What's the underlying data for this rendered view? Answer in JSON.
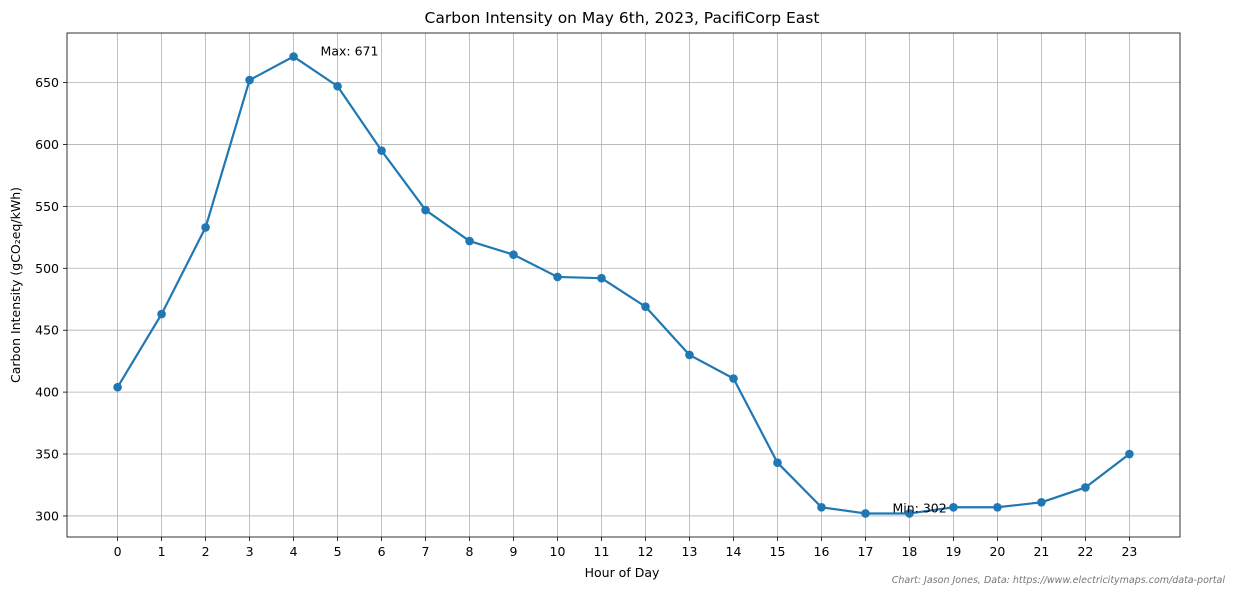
{
  "chart_data": {
    "type": "line",
    "title": "Carbon Intensity on May 6th, 2023, PacifiCorp East",
    "xlabel": "Hour of Day",
    "ylabel": "Carbon Intensity (gCO₂eq/kWh)",
    "x": [
      0,
      1,
      2,
      3,
      4,
      5,
      6,
      7,
      8,
      9,
      10,
      11,
      12,
      13,
      14,
      15,
      16,
      17,
      18,
      19,
      20,
      21,
      22,
      23
    ],
    "x_tick_labels": [
      "0",
      "1",
      "2",
      "3",
      "4",
      "5",
      "6",
      "7",
      "8",
      "9",
      "10",
      "11",
      "12",
      "13",
      "14",
      "15",
      "16",
      "17",
      "18",
      "19",
      "20",
      "21",
      "22",
      "23"
    ],
    "series": [
      {
        "values": [
          404,
          463,
          533,
          652,
          671,
          647,
          595,
          547,
          522,
          511,
          493,
          492,
          469,
          430,
          411,
          343,
          307,
          302,
          302,
          307,
          307,
          311,
          323,
          350
        ]
      }
    ],
    "xlim": [
      -1.15,
      24.15
    ],
    "ylim": [
      283,
      690
    ],
    "y_ticks": [
      300,
      350,
      400,
      450,
      500,
      550,
      600,
      650
    ],
    "y_tick_labels": [
      "300",
      "350",
      "400",
      "450",
      "500",
      "550",
      "600",
      "650"
    ],
    "grid": true,
    "line_color": "#1f77b4",
    "annotations": [
      {
        "text": "Max: 671",
        "x": 4,
        "y": 671
      },
      {
        "text": "Min: 302",
        "x": 17,
        "y": 302
      }
    ],
    "credit": "Chart: Jason Jones, Data: https://www.electricitymaps.com/data-portal"
  }
}
